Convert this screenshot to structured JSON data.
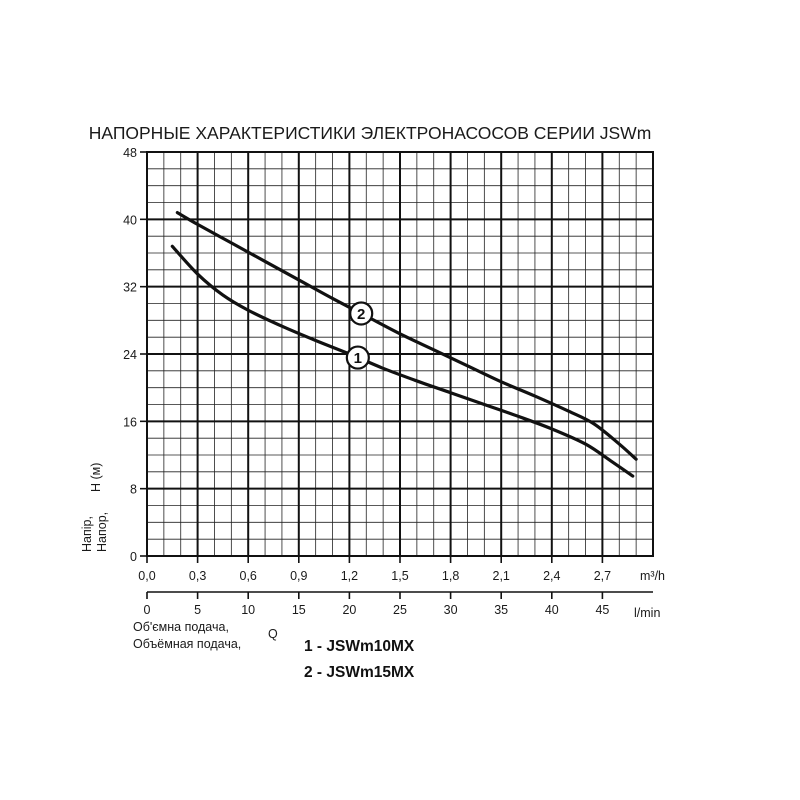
{
  "chart_data": {
    "type": "line",
    "title": "НАПОРНЫЕ ХАРАКТЕРИСТИКИ ЭЛЕКТРОНАСОСОВ СЕРИИ JSWm",
    "ylabel_ua": "Напір,",
    "ylabel_ru": "Напор,",
    "ylabel_unit": "H (м)",
    "xlabel_ua": "Об'ємна подача,",
    "xlabel_ru": "Объёмная подача,",
    "xlabel_symbol": "Q",
    "x_unit_primary": "m³/h",
    "x_unit_secondary": "l/min",
    "xlim": [
      0,
      3.0
    ],
    "ylim": [
      0,
      48
    ],
    "x_ticks": [
      "0,0",
      "0,3",
      "0,6",
      "0,9",
      "1,2",
      "1,5",
      "1,8",
      "2,1",
      "2,4",
      "2,7"
    ],
    "x2_ticks": [
      "0",
      "5",
      "10",
      "15",
      "20",
      "25",
      "30",
      "35",
      "40",
      "45"
    ],
    "y_ticks": [
      "0",
      "8",
      "16",
      "24",
      "32",
      "40",
      "48"
    ],
    "grid": true,
    "series": [
      {
        "name": "1",
        "label": "1 - JSWm10MX",
        "x": [
          0.15,
          0.3,
          0.45,
          0.6,
          0.8,
          1.0,
          1.2,
          1.4,
          1.6,
          1.8,
          2.0,
          2.2,
          2.4,
          2.6,
          2.75,
          2.88
        ],
        "y": [
          36.8,
          33.5,
          31.0,
          29.2,
          27.3,
          25.6,
          24.0,
          22.3,
          20.8,
          19.4,
          18.0,
          16.6,
          15.1,
          13.3,
          11.3,
          9.5
        ]
      },
      {
        "name": "2",
        "label": "2 - JSWm15MX",
        "x": [
          0.18,
          0.3,
          0.5,
          0.7,
          0.9,
          1.1,
          1.3,
          1.5,
          1.7,
          1.9,
          2.1,
          2.3,
          2.5,
          2.65,
          2.8,
          2.9
        ],
        "y": [
          40.8,
          39.4,
          37.2,
          35.0,
          32.8,
          30.6,
          28.5,
          26.4,
          24.5,
          22.6,
          20.7,
          19.0,
          17.2,
          15.7,
          13.3,
          11.5
        ]
      }
    ]
  }
}
